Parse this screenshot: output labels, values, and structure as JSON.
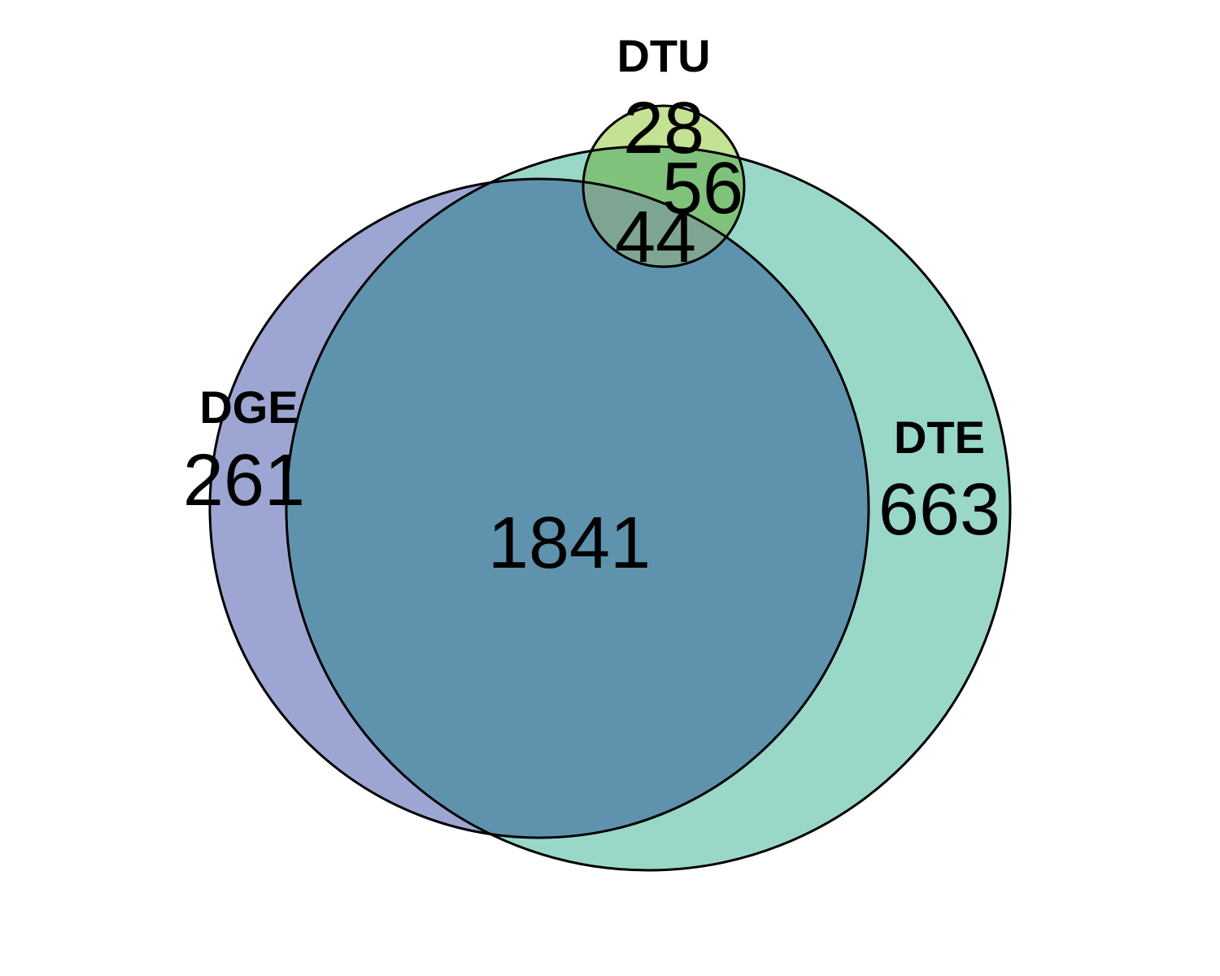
{
  "sets": {
    "dge": {
      "name": "DGE",
      "color": "#9da6d2"
    },
    "dte": {
      "name": "DTE",
      "color": "#99d8c8"
    },
    "dtu": {
      "name": "DTU",
      "color": "#c3e293"
    }
  },
  "overlap_colors": {
    "dge_dte": "#5f93ad",
    "dtu_dte": "#80c27b",
    "all_three": "#7ea592"
  },
  "regions": {
    "dge_only": "261",
    "dte_only": "663",
    "dtu_only": "28",
    "dge_dte": "1841",
    "dte_dtu": "56",
    "dge_dte_dtu": "44"
  }
}
